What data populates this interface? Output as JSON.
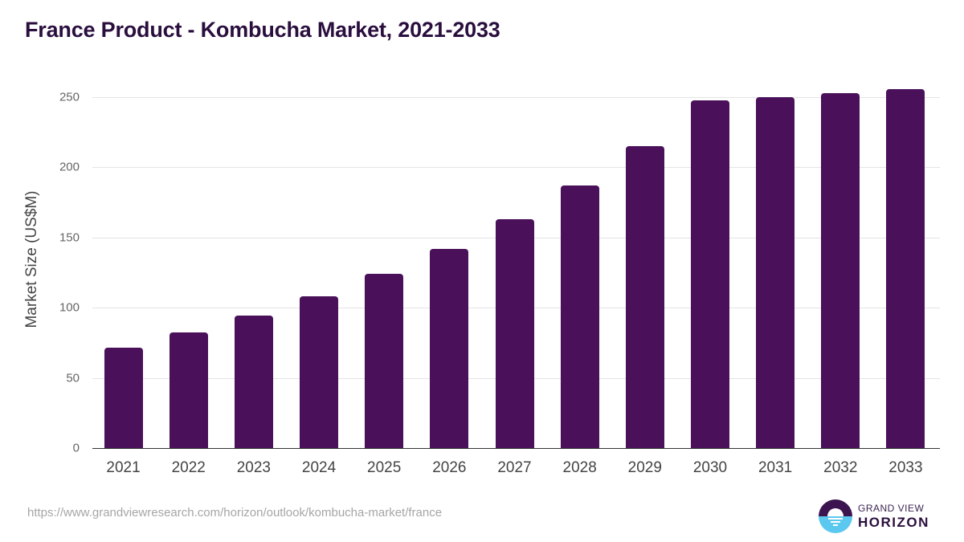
{
  "header": {
    "title": "France Product - Kombucha Market, 2021-2033"
  },
  "chart_data": {
    "type": "bar",
    "title": "France Product - Kombucha Market, 2021-2033",
    "xlabel": "",
    "ylabel": "Market Size (US$M)",
    "ylim": [
      0,
      250
    ],
    "yticks": [
      0,
      50,
      100,
      150,
      200,
      250
    ],
    "grid": true,
    "legend": null,
    "bar_color": "#4a115a",
    "categories": [
      "2021",
      "2022",
      "2023",
      "2024",
      "2025",
      "2026",
      "2027",
      "2028",
      "2029",
      "2030",
      "2031",
      "2032",
      "2033"
    ],
    "values": [
      71.5,
      82.4,
      94.4,
      108.1,
      124.1,
      141.9,
      163.0,
      187.1,
      215.1,
      247.7,
      250.0,
      252.9,
      255.7
    ]
  },
  "axis": {
    "ylabel": "Market Size (US$M)",
    "yticks": [
      "0",
      "50",
      "100",
      "150",
      "200",
      "250"
    ],
    "xticks": [
      "2021",
      "2022",
      "2023",
      "2024",
      "2025",
      "2026",
      "2027",
      "2028",
      "2029",
      "2030",
      "2031",
      "2032",
      "2033"
    ]
  },
  "footer": {
    "source_url": "https://www.grandviewresearch.com/horizon/outlook/kombucha-market/france",
    "logo_line1": "GRAND VIEW",
    "logo_line2": "HORIZON"
  },
  "colors": {
    "bar": "#4a115a",
    "title": "#2a0f3e",
    "logo_dark": "#3b1450",
    "logo_light": "#5bc8f0"
  }
}
